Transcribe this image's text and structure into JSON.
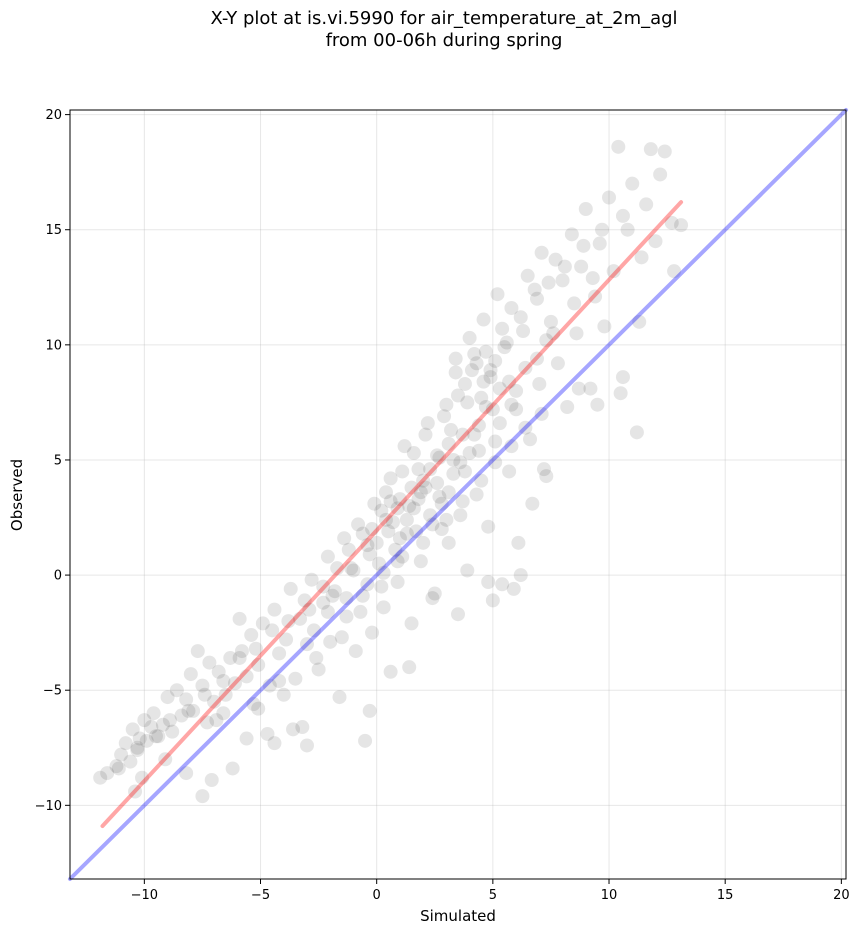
{
  "chart_data": {
    "type": "scatter",
    "title_line1": "X-Y plot at is.vi.5990 for air_temperature_at_2m_agl",
    "title_line2": "from 00-06h during spring",
    "xlabel": "Simulated",
    "ylabel": "Observed",
    "xlim": [
      -13.2,
      20.2
    ],
    "ylim": [
      -13.2,
      20.2
    ],
    "xticks": [
      -10,
      -5,
      0,
      5,
      10,
      15,
      20
    ],
    "yticks": [
      -10,
      -5,
      0,
      5,
      10,
      15,
      20
    ],
    "tick_labels": [
      "−10",
      "−5",
      "0",
      "5",
      "10",
      "15",
      "20"
    ],
    "grid": true,
    "point_color": "#000000",
    "point_alpha": 0.1,
    "lines": [
      {
        "color": "#ff0000",
        "alpha": 0.35,
        "points": [
          [
            -11.8,
            -10.9
          ],
          [
            13.1,
            16.2
          ]
        ]
      },
      {
        "color": "#0000ff",
        "alpha": 0.35,
        "points": [
          [
            -13.2,
            -13.2
          ],
          [
            20.2,
            20.2
          ]
        ]
      }
    ],
    "points": [
      [
        -11.9,
        -8.8
      ],
      [
        -11.6,
        -8.6
      ],
      [
        -11.2,
        -8.3
      ],
      [
        -11.0,
        -7.8
      ],
      [
        -10.8,
        -7.3
      ],
      [
        -10.6,
        -8.1
      ],
      [
        -10.5,
        -6.7
      ],
      [
        -10.3,
        -7.5
      ],
      [
        -10.2,
        -7.1
      ],
      [
        -10.0,
        -6.3
      ],
      [
        -9.9,
        -7.2
      ],
      [
        -9.7,
        -6.6
      ],
      [
        -9.6,
        -6.0
      ],
      [
        -9.4,
        -7.0
      ],
      [
        -9.2,
        -6.5
      ],
      [
        -9.0,
        -5.3
      ],
      [
        -8.8,
        -6.8
      ],
      [
        -8.6,
        -5.0
      ],
      [
        -8.4,
        -6.1
      ],
      [
        -8.2,
        -5.4
      ],
      [
        -8.0,
        -4.3
      ],
      [
        -7.9,
        -5.9
      ],
      [
        -7.7,
        -3.3
      ],
      [
        -7.5,
        -4.8
      ],
      [
        -7.3,
        -6.4
      ],
      [
        -7.2,
        -3.8
      ],
      [
        -7.0,
        -5.5
      ],
      [
        -6.8,
        -4.2
      ],
      [
        -6.6,
        -6.0
      ],
      [
        -6.5,
        -5.2
      ],
      [
        -6.3,
        -3.6
      ],
      [
        -6.1,
        -4.7
      ],
      [
        -5.9,
        -1.9
      ],
      [
        -5.8,
        -3.3
      ],
      [
        -5.6,
        -4.4
      ],
      [
        -5.4,
        -2.6
      ],
      [
        -5.3,
        -5.6
      ],
      [
        -5.1,
        -3.9
      ],
      [
        -4.9,
        -2.1
      ],
      [
        -4.7,
        -6.9
      ],
      [
        -4.6,
        -4.8
      ],
      [
        -4.4,
        -1.5
      ],
      [
        -4.2,
        -3.4
      ],
      [
        -4.0,
        -5.2
      ],
      [
        -3.9,
        -2.8
      ],
      [
        -3.7,
        -0.6
      ],
      [
        -3.5,
        -4.5
      ],
      [
        -3.3,
        -1.9
      ],
      [
        -3.2,
        -6.6
      ],
      [
        -3.0,
        -3.0
      ],
      [
        -2.8,
        -0.2
      ],
      [
        -2.7,
        -2.4
      ],
      [
        -2.5,
        -4.1
      ],
      [
        -2.3,
        -1.2
      ],
      [
        -2.1,
        0.8
      ],
      [
        -2.0,
        -2.9
      ],
      [
        -1.8,
        -0.7
      ],
      [
        -1.6,
        -5.3
      ],
      [
        -1.4,
        1.6
      ],
      [
        -1.3,
        -1.8
      ],
      [
        -1.1,
        0.3
      ],
      [
        -0.9,
        -3.3
      ],
      [
        -0.8,
        2.2
      ],
      [
        -0.6,
        -0.9
      ],
      [
        -0.4,
        1.3
      ],
      [
        -0.2,
        -2.5
      ],
      [
        -0.1,
        3.1
      ],
      [
        0.1,
        0.5
      ],
      [
        0.3,
        -1.4
      ],
      [
        0.4,
        2.4
      ],
      [
        0.6,
        4.2
      ],
      [
        0.8,
        1.1
      ],
      [
        0.9,
        -0.3
      ],
      [
        1.0,
        3.3
      ],
      [
        1.2,
        5.6
      ],
      [
        1.3,
        1.8
      ],
      [
        1.5,
        -2.1
      ],
      [
        1.6,
        2.9
      ],
      [
        1.8,
        4.6
      ],
      [
        1.9,
        0.6
      ],
      [
        2.1,
        3.8
      ],
      [
        2.2,
        6.6
      ],
      [
        2.4,
        2.2
      ],
      [
        2.5,
        -0.8
      ],
      [
        2.7,
        5.1
      ],
      [
        2.8,
        3.1
      ],
      [
        3.0,
        7.4
      ],
      [
        3.1,
        1.4
      ],
      [
        3.3,
        4.4
      ],
      [
        3.4,
        8.8
      ],
      [
        3.6,
        2.6
      ],
      [
        3.7,
        6.1
      ],
      [
        3.9,
        0.2
      ],
      [
        4.0,
        5.3
      ],
      [
        4.2,
        9.6
      ],
      [
        4.3,
        3.5
      ],
      [
        4.5,
        7.7
      ],
      [
        4.6,
        11.1
      ],
      [
        4.8,
        2.1
      ],
      [
        4.9,
        8.6
      ],
      [
        5.1,
        5.8
      ],
      [
        5.2,
        12.2
      ],
      [
        5.4,
        -0.4
      ],
      [
        5.5,
        9.9
      ],
      [
        5.7,
        4.5
      ],
      [
        5.8,
        11.6
      ],
      [
        6.0,
        7.2
      ],
      [
        6.1,
        1.4
      ],
      [
        6.3,
        10.6
      ],
      [
        6.5,
        13.0
      ],
      [
        6.6,
        5.9
      ],
      [
        6.8,
        12.4
      ],
      [
        7.0,
        8.3
      ],
      [
        7.1,
        14.0
      ],
      [
        7.3,
        4.3
      ],
      [
        7.5,
        11.0
      ],
      [
        7.7,
        13.7
      ],
      [
        7.8,
        9.2
      ],
      [
        8.0,
        12.8
      ],
      [
        8.2,
        7.3
      ],
      [
        8.4,
        14.8
      ],
      [
        8.6,
        10.5
      ],
      [
        8.8,
        13.4
      ],
      [
        9.0,
        15.9
      ],
      [
        9.2,
        8.1
      ],
      [
        9.4,
        12.1
      ],
      [
        9.6,
        14.4
      ],
      [
        9.8,
        10.8
      ],
      [
        10.0,
        16.4
      ],
      [
        10.2,
        13.2
      ],
      [
        10.4,
        18.6
      ],
      [
        10.6,
        8.6
      ],
      [
        10.8,
        15.0
      ],
      [
        11.0,
        17.0
      ],
      [
        11.2,
        6.2
      ],
      [
        11.4,
        13.8
      ],
      [
        11.6,
        16.1
      ],
      [
        11.8,
        18.5
      ],
      [
        12.0,
        14.5
      ],
      [
        12.2,
        17.4
      ],
      [
        12.4,
        18.4
      ],
      [
        12.7,
        15.3
      ],
      [
        13.1,
        15.2
      ],
      [
        12.8,
        13.2
      ],
      [
        11.3,
        11.0
      ],
      [
        10.5,
        7.9
      ],
      [
        9.5,
        7.4
      ],
      [
        8.7,
        8.1
      ],
      [
        7.2,
        4.6
      ],
      [
        6.7,
        3.1
      ],
      [
        6.2,
        0.0
      ],
      [
        5.9,
        -0.6
      ],
      [
        5.0,
        -1.1
      ],
      [
        4.8,
        -0.3
      ],
      [
        3.5,
        -1.7
      ],
      [
        2.4,
        -1.0
      ],
      [
        1.4,
        -4.0
      ],
      [
        0.6,
        -4.2
      ],
      [
        -0.3,
        -5.9
      ],
      [
        -0.5,
        -7.2
      ],
      [
        -3.0,
        -7.4
      ],
      [
        -3.6,
        -6.7
      ],
      [
        -4.4,
        -7.3
      ],
      [
        -5.6,
        -7.1
      ],
      [
        -6.2,
        -8.4
      ],
      [
        -7.1,
        -8.9
      ],
      [
        -7.5,
        -9.6
      ],
      [
        -8.2,
        -8.6
      ],
      [
        -9.1,
        -8.0
      ],
      [
        -10.4,
        -9.4
      ],
      [
        -10.1,
        -8.8
      ],
      [
        -6.9,
        -6.3
      ],
      [
        -5.1,
        -5.8
      ],
      [
        -4.2,
        -4.6
      ],
      [
        -2.6,
        -3.6
      ],
      [
        -1.5,
        -2.7
      ],
      [
        -0.7,
        -1.6
      ],
      [
        0.2,
        -0.5
      ],
      [
        0.9,
        0.6
      ],
      [
        1.7,
        1.9
      ],
      [
        2.3,
        2.6
      ],
      [
        3.1,
        3.6
      ],
      [
        3.8,
        4.5
      ],
      [
        4.4,
        5.4
      ],
      [
        5.3,
        6.6
      ],
      [
        6.0,
        8.0
      ],
      [
        6.9,
        9.4
      ],
      [
        7.6,
        10.5
      ],
      [
        8.5,
        11.8
      ],
      [
        9.3,
        12.9
      ],
      [
        -2.9,
        -1.5
      ],
      [
        -1.9,
        -0.9
      ],
      [
        -1.0,
        0.2
      ],
      [
        0.0,
        1.4
      ],
      [
        0.7,
        2.3
      ],
      [
        1.4,
        3.0
      ],
      [
        2.0,
        4.1
      ],
      [
        2.6,
        5.2
      ],
      [
        3.2,
        6.3
      ],
      [
        3.9,
        7.5
      ],
      [
        4.6,
        8.4
      ],
      [
        5.1,
        9.3
      ],
      [
        5.6,
        10.1
      ],
      [
        6.2,
        11.2
      ],
      [
        6.9,
        12.0
      ],
      [
        7.4,
        12.7
      ],
      [
        8.1,
        13.4
      ],
      [
        8.9,
        14.3
      ],
      [
        9.7,
        15.0
      ],
      [
        10.6,
        15.6
      ],
      [
        0.4,
        3.6
      ],
      [
        1.1,
        4.5
      ],
      [
        1.6,
        5.3
      ],
      [
        2.1,
        6.1
      ],
      [
        2.9,
        6.9
      ],
      [
        3.5,
        7.8
      ],
      [
        4.1,
        8.9
      ],
      [
        4.7,
        9.7
      ],
      [
        0.2,
        2.8
      ],
      [
        0.9,
        2.9
      ],
      [
        1.8,
        3.3
      ],
      [
        2.6,
        4.0
      ],
      [
        3.3,
        5.0
      ],
      [
        4.2,
        6.1
      ],
      [
        5.3,
        8.1
      ],
      [
        5.8,
        7.4
      ],
      [
        6.4,
        9.0
      ],
      [
        7.3,
        10.2
      ],
      [
        -0.6,
        1.8
      ],
      [
        -0.3,
        0.9
      ],
      [
        0.5,
        1.9
      ],
      [
        1.3,
        2.4
      ],
      [
        1.9,
        3.6
      ],
      [
        2.7,
        3.4
      ],
      [
        3.6,
        4.9
      ],
      [
        4.4,
        6.5
      ],
      [
        5.0,
        7.2
      ],
      [
        5.7,
        8.4
      ],
      [
        -1.2,
        1.1
      ],
      [
        -1.7,
        0.3
      ],
      [
        -2.3,
        -0.5
      ],
      [
        -3.1,
        -1.1
      ],
      [
        -3.8,
        -2.0
      ],
      [
        -4.5,
        -2.4
      ],
      [
        -5.2,
        -3.2
      ],
      [
        -5.9,
        -3.6
      ],
      [
        -6.6,
        -4.6
      ],
      [
        -7.4,
        -5.2
      ],
      [
        -8.1,
        -5.9
      ],
      [
        -8.9,
        -6.3
      ],
      [
        -9.5,
        -7.0
      ],
      [
        -10.3,
        -7.6
      ],
      [
        -11.1,
        -8.4
      ],
      [
        3.0,
        2.4
      ],
      [
        3.7,
        3.2
      ],
      [
        4.5,
        4.1
      ],
      [
        5.1,
        4.9
      ],
      [
        5.8,
        5.6
      ],
      [
        6.4,
        6.4
      ],
      [
        7.1,
        7.0
      ],
      [
        2.0,
        1.4
      ],
      [
        1.1,
        0.8
      ],
      [
        0.3,
        0.1
      ],
      [
        -0.4,
        -0.4
      ],
      [
        -1.3,
        -1.0
      ],
      [
        -2.1,
        -1.6
      ],
      [
        4.3,
        9.2
      ],
      [
        3.8,
        8.3
      ],
      [
        4.9,
        8.9
      ],
      [
        4.0,
        10.3
      ],
      [
        5.4,
        10.7
      ],
      [
        3.4,
        9.4
      ],
      [
        4.7,
        7.3
      ],
      [
        3.1,
        5.7
      ],
      [
        2.3,
        4.6
      ],
      [
        1.5,
        3.8
      ],
      [
        0.6,
        3.2
      ],
      [
        -0.2,
        2.0
      ],
      [
        1.0,
        1.6
      ],
      [
        2.8,
        2.0
      ]
    ]
  }
}
